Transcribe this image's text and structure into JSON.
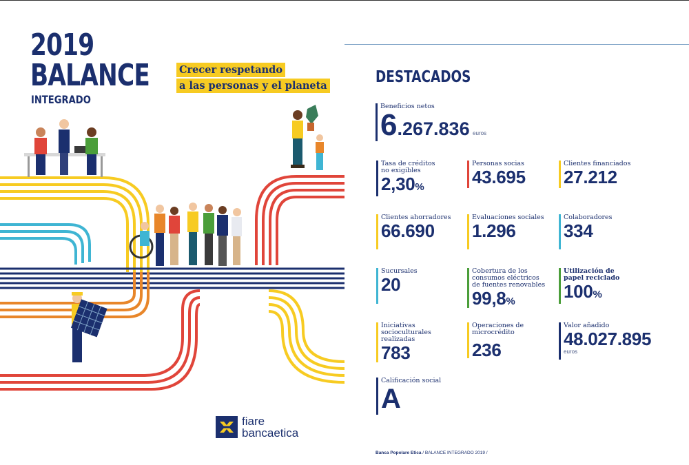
{
  "cover": {
    "year": "2019",
    "title": "BALANCE",
    "subtitle": "INTEGRADO",
    "tagline_line1": "Crecer respetando",
    "tagline_line2": "a las personas y el planeta",
    "logo_line1": "fiare",
    "logo_line2": "bancaetica"
  },
  "colors": {
    "navy": "#1b2f6e",
    "yellow": "#f7cb22",
    "red": "#e0453a",
    "orange": "#e8862a",
    "teal": "#3fb5d3",
    "green": "#4b9e3a"
  },
  "highlights": {
    "title": "DESTACADOS",
    "beneficios": {
      "label": "Beneficios netos",
      "value_big": "6",
      "value_rest": ".267.836",
      "unit": "euros"
    },
    "tasa": {
      "label1": "Tasa de créditos",
      "label2": "no exigibles",
      "value": "2,30",
      "suffix": "%"
    },
    "personas": {
      "label": "Personas socias",
      "value": "43.695"
    },
    "clientes_fin": {
      "label": "Clientes financiados",
      "value": "27.212"
    },
    "ahorradores": {
      "label": "Clientes ahorradores",
      "value": "66.690"
    },
    "evaluaciones": {
      "label": "Evaluaciones sociales",
      "value": "1.296"
    },
    "colaboradores": {
      "label": "Colaboradores",
      "value": "334"
    },
    "sucursales": {
      "label": "Sucursales",
      "value": "20"
    },
    "cobertura": {
      "label1": "Cobertura de los",
      "label2": "consumos eléctricos",
      "label3": "de fuentes renovables",
      "value": "99,8",
      "suffix": "%"
    },
    "papel": {
      "label1": "Utilización de",
      "label2": "papel reciclado",
      "value": "100",
      "suffix": "%"
    },
    "iniciativas": {
      "label1": "Iniciativas",
      "label2": "socioculturales",
      "label3": "realizadas",
      "value": "783"
    },
    "microcredito": {
      "label1": "Operaciones de",
      "label2": "microcrédito",
      "value": "236"
    },
    "valor": {
      "label": "Valor añadido",
      "value": "48.027.895",
      "unit": "euros"
    },
    "calificacion": {
      "label": "Calificación social",
      "value": "A"
    }
  },
  "footer": {
    "org": "Banca Popolare Etica",
    "rest": " / BALANCE INTEGRADO 2019 /"
  }
}
